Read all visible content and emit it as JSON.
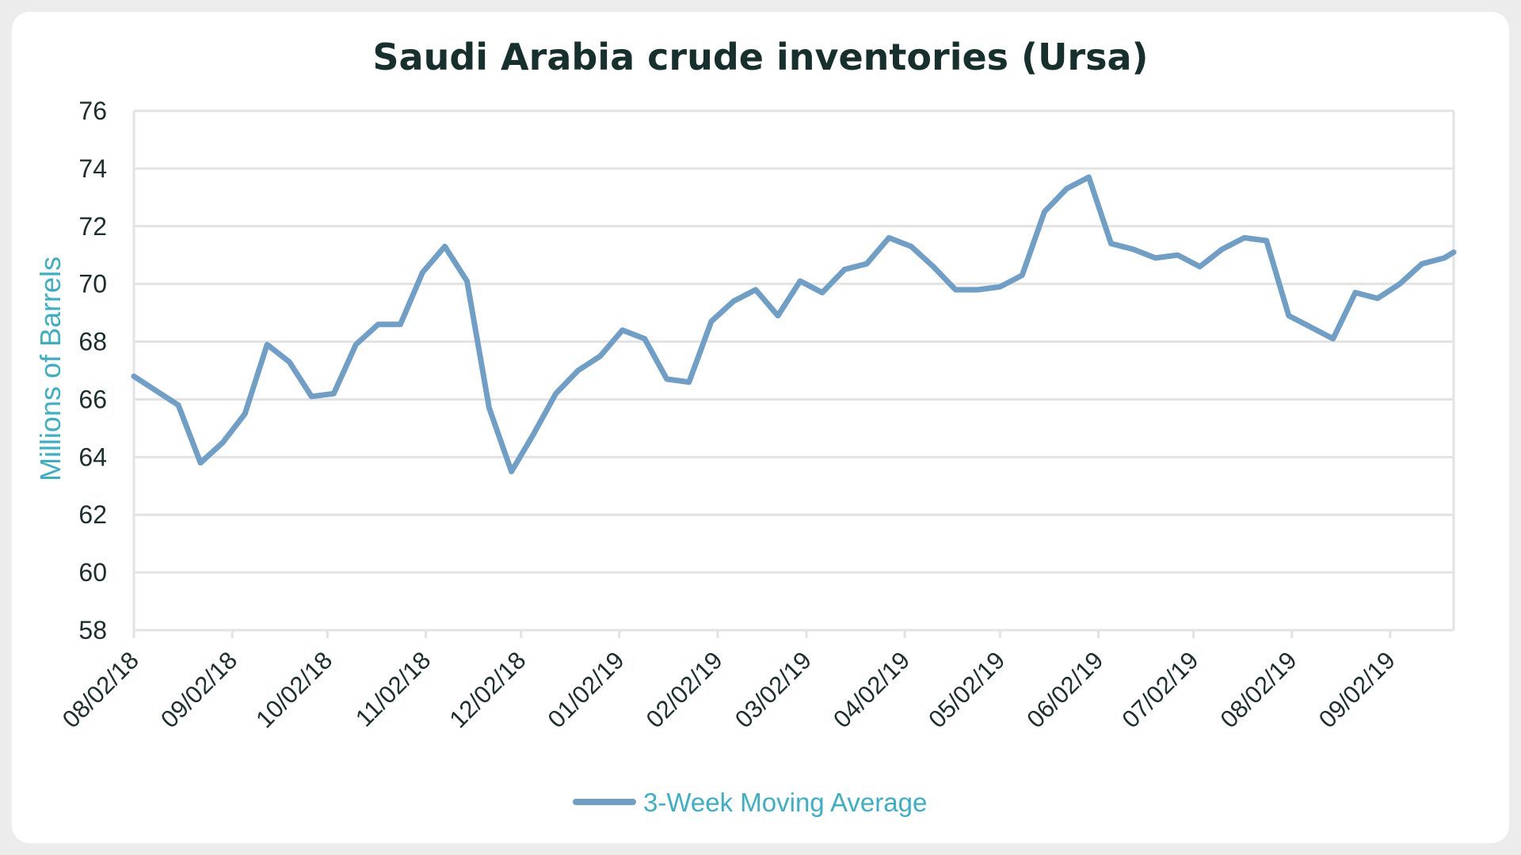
{
  "chart_data": {
    "type": "line",
    "title": "Saudi Arabia crude inventories (Ursa)",
    "xlabel": "",
    "ylabel": "Millions of Barrels",
    "ylim": [
      58,
      76
    ],
    "yticks": [
      58,
      60,
      62,
      64,
      66,
      68,
      70,
      72,
      74,
      76
    ],
    "xticks": [
      "08/02/18",
      "09/02/18",
      "10/02/18",
      "11/02/18",
      "12/02/18",
      "01/02/19",
      "02/02/19",
      "03/02/19",
      "04/02/19",
      "05/02/19",
      "06/02/19",
      "07/02/19",
      "08/02/19",
      "09/02/19"
    ],
    "x_range": [
      "08/02/18",
      "09/22/19"
    ],
    "grid": true,
    "legend_position": "bottom",
    "colors": {
      "line": "#6f9fc6",
      "legend_text": "#3bb0c4",
      "grid": "#e3e3e3"
    },
    "series": [
      {
        "name": "3-Week Moving Average",
        "x": [
          "08/02/18",
          "08/09/18",
          "08/16/18",
          "08/23/18",
          "08/30/18",
          "09/06/18",
          "09/13/18",
          "09/20/18",
          "09/27/18",
          "10/04/18",
          "10/11/18",
          "10/18/18",
          "10/25/18",
          "11/01/18",
          "11/08/18",
          "11/15/18",
          "11/22/18",
          "11/29/18",
          "12/06/18",
          "12/13/18",
          "12/20/18",
          "12/27/18",
          "01/03/19",
          "01/10/19",
          "01/17/19",
          "01/24/19",
          "01/31/19",
          "02/07/19",
          "02/14/19",
          "02/21/19",
          "02/28/19",
          "03/07/19",
          "03/14/19",
          "03/21/19",
          "03/28/19",
          "04/04/19",
          "04/11/19",
          "04/18/19",
          "04/25/19",
          "05/02/19",
          "05/09/19",
          "05/16/19",
          "05/23/19",
          "05/30/19",
          "06/06/19",
          "06/13/19",
          "06/20/19",
          "06/27/19",
          "07/04/19",
          "07/11/19",
          "07/18/19",
          "07/25/19",
          "08/01/19",
          "08/08/19",
          "08/15/19",
          "08/22/19",
          "08/29/19",
          "09/05/19",
          "09/12/19",
          "09/19/19",
          "09/22/19"
        ],
        "values": [
          66.8,
          66.3,
          65.8,
          63.8,
          64.5,
          65.5,
          67.9,
          67.3,
          66.1,
          66.2,
          67.9,
          68.6,
          68.6,
          70.4,
          71.3,
          70.1,
          65.7,
          63.5,
          64.8,
          66.2,
          67.0,
          67.5,
          68.4,
          68.1,
          66.7,
          66.6,
          68.7,
          69.4,
          69.8,
          68.9,
          70.1,
          69.7,
          70.5,
          70.7,
          71.6,
          71.3,
          70.6,
          69.8,
          69.8,
          69.9,
          70.3,
          72.5,
          73.3,
          73.7,
          71.4,
          71.2,
          70.9,
          71.0,
          70.6,
          71.2,
          71.6,
          71.5,
          68.9,
          68.5,
          68.1,
          69.7,
          69.5,
          70.0,
          70.7,
          70.9,
          71.1
        ]
      }
    ]
  }
}
